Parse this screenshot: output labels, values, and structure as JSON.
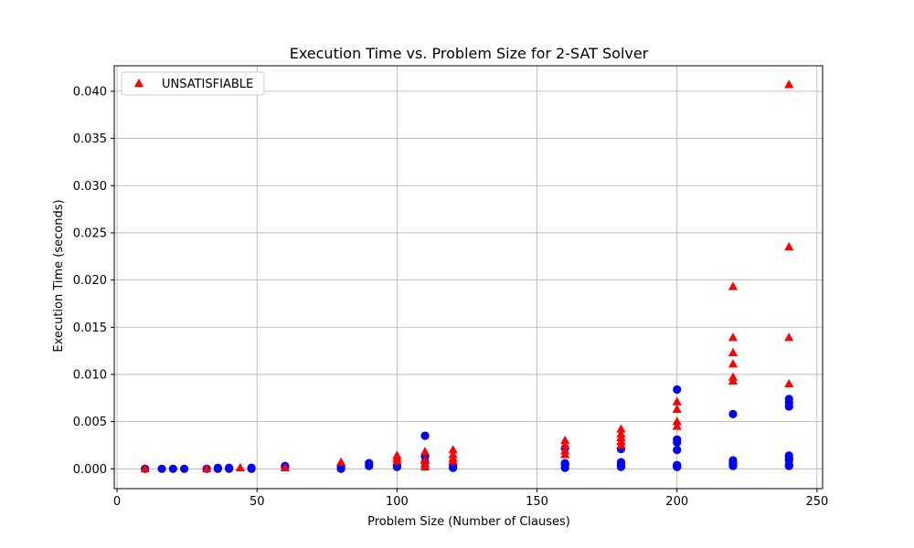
{
  "chart_data": {
    "type": "scatter",
    "title": "Execution Time vs. Problem Size for 2-SAT Solver",
    "xlabel": "Problem Size (Number of Clauses)",
    "ylabel": "Execution Time (seconds)",
    "xlim": [
      -1,
      252
    ],
    "ylim": [
      -0.0021,
      0.0427
    ],
    "xticks": [
      0,
      50,
      100,
      150,
      200,
      250
    ],
    "yticks": [
      0.0,
      0.005,
      0.01,
      0.015,
      0.02,
      0.025,
      0.03,
      0.035,
      0.04
    ],
    "ytick_labels": [
      "0.000",
      "0.005",
      "0.010",
      "0.015",
      "0.020",
      "0.025",
      "0.030",
      "0.035",
      "0.040"
    ],
    "grid": true,
    "legend_position": "top-left",
    "series": [
      {
        "name": "",
        "marker": "circle",
        "color": "#0000ff",
        "points": [
          [
            10,
            0.0
          ],
          [
            16,
            0.0
          ],
          [
            20,
            0.0
          ],
          [
            24,
            0.0
          ],
          [
            32,
            0.0
          ],
          [
            36,
            0.0
          ],
          [
            36,
            0.0001
          ],
          [
            40,
            0.0
          ],
          [
            40,
            0.0001
          ],
          [
            48,
            0.0
          ],
          [
            48,
            0.0001
          ],
          [
            60,
            0.0002
          ],
          [
            60,
            0.0003
          ],
          [
            80,
            0.0
          ],
          [
            80,
            0.0001
          ],
          [
            80,
            0.0002
          ],
          [
            90,
            0.0003
          ],
          [
            90,
            0.0006
          ],
          [
            100,
            0.0002
          ],
          [
            100,
            0.0004
          ],
          [
            110,
            0.0007
          ],
          [
            110,
            0.0013
          ],
          [
            110,
            0.0035
          ],
          [
            120,
            0.0001
          ],
          [
            120,
            0.0003
          ],
          [
            160,
            0.0001
          ],
          [
            160,
            0.0004
          ],
          [
            160,
            0.0006
          ],
          [
            160,
            0.0022
          ],
          [
            180,
            0.0002
          ],
          [
            180,
            0.0004
          ],
          [
            180,
            0.0007
          ],
          [
            180,
            0.0021
          ],
          [
            200,
            0.0002
          ],
          [
            200,
            0.0003
          ],
          [
            200,
            0.0004
          ],
          [
            200,
            0.002
          ],
          [
            200,
            0.0028
          ],
          [
            200,
            0.0031
          ],
          [
            200,
            0.0084
          ],
          [
            220,
            0.0003
          ],
          [
            220,
            0.0005
          ],
          [
            220,
            0.0007
          ],
          [
            220,
            0.0009
          ],
          [
            220,
            0.0058
          ],
          [
            240,
            0.0003
          ],
          [
            240,
            0.0004
          ],
          [
            240,
            0.0009
          ],
          [
            240,
            0.0011
          ],
          [
            240,
            0.0014
          ],
          [
            240,
            0.0066
          ],
          [
            240,
            0.007
          ],
          [
            240,
            0.0074
          ]
        ]
      },
      {
        "name": "UNSATISFIABLE",
        "marker": "triangle",
        "color": "#ff0000",
        "points": [
          [
            10,
            0.0
          ],
          [
            32,
            0.0
          ],
          [
            44,
            0.0001
          ],
          [
            60,
            0.0001
          ],
          [
            80,
            0.0007
          ],
          [
            100,
            0.0008
          ],
          [
            100,
            0.0011
          ],
          [
            100,
            0.0014
          ],
          [
            110,
            0.0002
          ],
          [
            110,
            0.0005
          ],
          [
            110,
            0.0009
          ],
          [
            110,
            0.0018
          ],
          [
            120,
            0.0008
          ],
          [
            120,
            0.0011
          ],
          [
            120,
            0.0015
          ],
          [
            120,
            0.002
          ],
          [
            160,
            0.0015
          ],
          [
            160,
            0.0019
          ],
          [
            160,
            0.0025
          ],
          [
            160,
            0.003
          ],
          [
            180,
            0.0025
          ],
          [
            180,
            0.0029
          ],
          [
            180,
            0.0033
          ],
          [
            180,
            0.0037
          ],
          [
            180,
            0.0042
          ],
          [
            200,
            0.0045
          ],
          [
            200,
            0.005
          ],
          [
            200,
            0.0063
          ],
          [
            200,
            0.0071
          ],
          [
            220,
            0.0093
          ],
          [
            220,
            0.0097
          ],
          [
            220,
            0.0111
          ],
          [
            220,
            0.0123
          ],
          [
            220,
            0.0139
          ],
          [
            220,
            0.0193
          ],
          [
            240,
            0.009
          ],
          [
            240,
            0.0139
          ],
          [
            240,
            0.0235
          ],
          [
            240,
            0.0407
          ]
        ]
      }
    ]
  }
}
